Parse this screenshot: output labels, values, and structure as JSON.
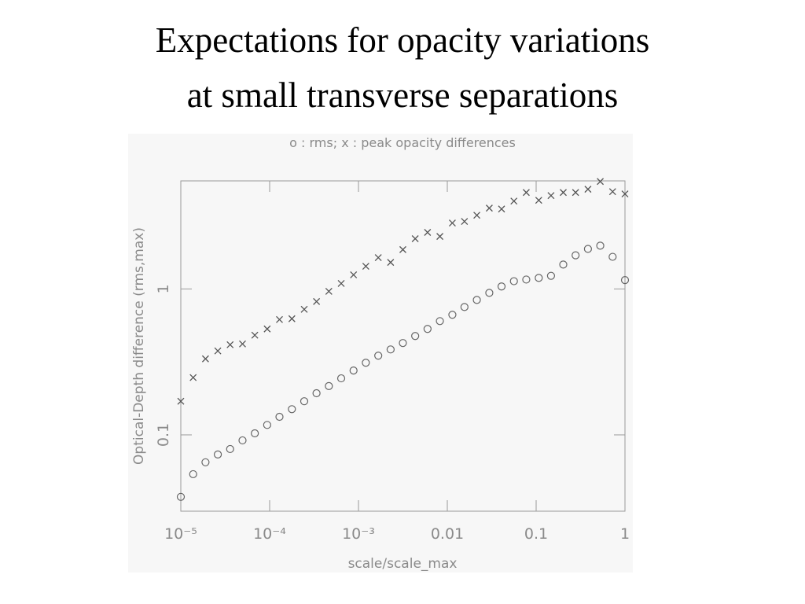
{
  "chart_data": {
    "type": "scatter",
    "title": "Expectations for opacity variations",
    "title_line2": "at small transverse separations",
    "subtitle": "o : rms; x : peak opacity differences",
    "xlabel": "scale/scale_max",
    "ylabel": "Optical-Depth difference (rms,max)",
    "xscale": "log",
    "yscale": "log",
    "xlim": [
      1e-05,
      1
    ],
    "ylim": [
      0.03,
      5.5
    ],
    "xticks": [
      {
        "value": 1e-05,
        "label": "10⁻⁵"
      },
      {
        "value": 0.0001,
        "label": "10⁻⁴"
      },
      {
        "value": 0.001,
        "label": "10⁻³"
      },
      0.01,
      0.1,
      1
    ],
    "yticks": [
      0.1,
      1
    ],
    "x": [
      1e-05,
      1.377e-05,
      1.896e-05,
      2.61e-05,
      3.59e-05,
      4.95e-05,
      6.81e-05,
      9.38e-05,
      0.000129,
      0.000178,
      0.000245,
      0.000337,
      0.000464,
      0.000639,
      0.00088,
      0.00121,
      0.00167,
      0.0023,
      0.00316,
      0.00435,
      0.00599,
      0.00825,
      0.0114,
      0.0156,
      0.0215,
      0.0297,
      0.0408,
      0.0562,
      0.0774,
      0.107,
      0.147,
      0.202,
      0.278,
      0.383,
      0.527,
      0.726,
      1
    ],
    "series": [
      {
        "marker": "o",
        "color": "#666666",
        "values": [
          0.0376,
          0.0538,
          0.0649,
          0.0734,
          0.08,
          0.0917,
          0.1025,
          0.117,
          0.133,
          0.15,
          0.17,
          0.193,
          0.216,
          0.244,
          0.276,
          0.312,
          0.349,
          0.385,
          0.426,
          0.476,
          0.532,
          0.602,
          0.665,
          0.752,
          0.841,
          0.94,
          1.04,
          1.13,
          1.16,
          1.19,
          1.23,
          1.47,
          1.7,
          1.88,
          1.98,
          1.66,
          1.15
        ]
      },
      {
        "marker": "x",
        "color": "#555555",
        "values": [
          0.17,
          0.247,
          0.332,
          0.376,
          0.415,
          0.42,
          0.482,
          0.532,
          0.617,
          0.625,
          0.725,
          0.82,
          0.963,
          1.09,
          1.25,
          1.43,
          1.64,
          1.52,
          1.86,
          2.21,
          2.44,
          2.29,
          2.83,
          2.9,
          3.2,
          3.58,
          3.53,
          4.0,
          4.58,
          4.05,
          4.36,
          4.58,
          4.58,
          4.82,
          5.45,
          4.64,
          4.48
        ]
      }
    ]
  }
}
